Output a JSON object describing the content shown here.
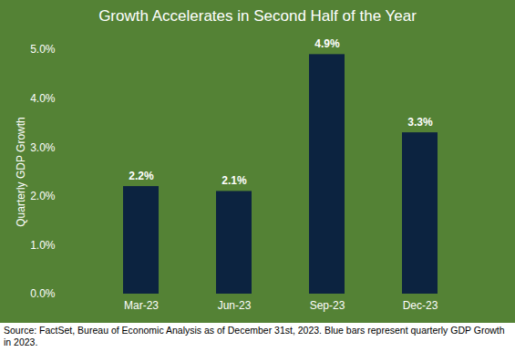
{
  "chart_data": {
    "type": "bar",
    "title": "Growth Accelerates in Second Half of the Year",
    "y_label": "Quarterly GDP Growth",
    "caption": "Source: FactSet, Bureau of Economic Analysis as of December 31st, 2023. Blue bars represent quarterly GDP Growth in 2023.",
    "categories": [
      "Mar-23",
      "Jun-23",
      "Sep-23",
      "Dec-23"
    ],
    "values": [
      2.2,
      2.1,
      4.9,
      3.3
    ],
    "value_labels": [
      "2.2%",
      "2.1%",
      "4.9%",
      "3.3%"
    ],
    "color": "#0c2340",
    "ylim": [
      0,
      5
    ],
    "yticks": [
      {
        "value": 0,
        "label": "0.0%"
      },
      {
        "value": 1,
        "label": "1.0%"
      },
      {
        "value": 2,
        "label": "2.0%"
      },
      {
        "value": 3,
        "label": "3.0%"
      },
      {
        "value": 4,
        "label": "4.0%"
      },
      {
        "value": 5,
        "label": "5.0%"
      }
    ],
    "grid": false,
    "data_labels": true
  }
}
